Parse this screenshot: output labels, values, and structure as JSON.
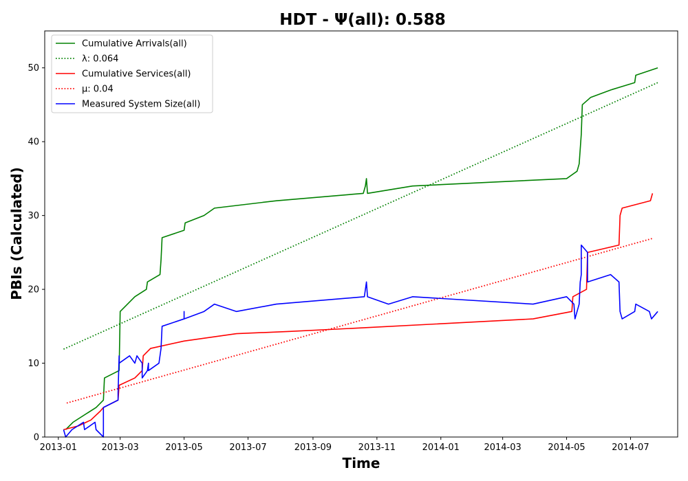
{
  "chart_data": {
    "type": "line",
    "title": "HDT -  Ψ(all): 0.588",
    "xlabel": "Time",
    "ylabel": "PBIs (Calculated)",
    "xlim": [
      "2012-12-19",
      "2014-08-15"
    ],
    "ylim": [
      0,
      55
    ],
    "x_ticks": [
      "2013-01-01",
      "2013-03-01",
      "2013-05-01",
      "2013-07-01",
      "2013-09-01",
      "2013-11-01",
      "2014-01-01",
      "2014-03-01",
      "2014-05-01",
      "2014-07-01"
    ],
    "x_tick_labels": [
      "2013-01",
      "2013-03",
      "2013-05",
      "2013-07",
      "2013-09",
      "2013-11",
      "2014-01",
      "2014-03",
      "2014-05",
      "2014-07"
    ],
    "y_ticks": [
      0,
      10,
      20,
      30,
      40,
      50
    ],
    "y_tick_labels": [
      "0",
      "10",
      "20",
      "30",
      "40",
      "50"
    ],
    "grid": false,
    "legend_position": "upper-left",
    "series": [
      {
        "name": "Cumulative Arrivals(all)",
        "color": "#008000",
        "style": "solid",
        "points": [
          [
            "2013-01-08",
            1
          ],
          [
            "2013-01-15",
            2
          ],
          [
            "2013-02-06",
            4
          ],
          [
            "2013-02-13",
            5
          ],
          [
            "2013-02-14",
            8
          ],
          [
            "2013-02-28",
            9
          ],
          [
            "2013-03-01",
            17
          ],
          [
            "2013-03-08",
            18
          ],
          [
            "2013-03-15",
            19
          ],
          [
            "2013-03-26",
            20
          ],
          [
            "2013-03-27",
            21
          ],
          [
            "2013-04-08",
            22
          ],
          [
            "2013-04-09",
            24
          ],
          [
            "2013-04-10",
            27
          ],
          [
            "2013-05-01",
            28
          ],
          [
            "2013-05-02",
            29
          ],
          [
            "2013-05-20",
            30
          ],
          [
            "2013-05-30",
            31
          ],
          [
            "2013-07-28",
            32
          ],
          [
            "2013-10-19",
            33
          ],
          [
            "2013-10-21",
            34
          ],
          [
            "2013-10-22",
            35
          ],
          [
            "2013-10-23",
            33
          ],
          [
            "2013-12-05",
            34
          ],
          [
            "2014-05-01",
            35
          ],
          [
            "2014-05-11",
            36
          ],
          [
            "2014-05-13",
            37
          ],
          [
            "2014-05-14",
            39
          ],
          [
            "2014-05-15",
            41
          ],
          [
            "2014-05-16",
            45
          ],
          [
            "2014-05-24",
            46
          ],
          [
            "2014-06-12",
            47
          ],
          [
            "2014-07-05",
            48
          ],
          [
            "2014-07-06",
            49
          ],
          [
            "2014-07-27",
            50
          ]
        ]
      },
      {
        "name": "λ: 0.064",
        "color": "#008000",
        "style": "dotted",
        "points": [
          [
            "2013-01-06",
            11.9
          ],
          [
            "2014-07-27",
            48
          ]
        ]
      },
      {
        "name": "Cumulative Services(all)",
        "color": "#ff0000",
        "style": "solid",
        "points": [
          [
            "2013-01-06",
            1
          ],
          [
            "2013-01-20",
            1.5
          ],
          [
            "2013-02-01",
            2.3
          ],
          [
            "2013-02-10",
            3.5
          ],
          [
            "2013-02-13",
            4
          ],
          [
            "2013-02-27",
            5
          ],
          [
            "2013-02-28",
            7
          ],
          [
            "2013-03-15",
            8
          ],
          [
            "2013-03-22",
            9
          ],
          [
            "2013-03-23",
            11
          ],
          [
            "2013-03-30",
            12
          ],
          [
            "2013-05-01",
            13
          ],
          [
            "2013-06-20",
            14
          ],
          [
            "2013-08-10",
            14.3
          ],
          [
            "2013-10-20",
            14.8
          ],
          [
            "2014-03-30",
            16
          ],
          [
            "2014-05-06",
            17
          ],
          [
            "2014-05-07",
            19
          ],
          [
            "2014-05-20",
            20
          ],
          [
            "2014-05-21",
            25
          ],
          [
            "2014-06-20",
            26
          ],
          [
            "2014-06-21",
            30
          ],
          [
            "2014-06-23",
            31
          ],
          [
            "2014-07-20",
            32
          ],
          [
            "2014-07-22",
            33
          ]
        ]
      },
      {
        "name": "μ: 0.04",
        "color": "#ff0000",
        "style": "dotted",
        "points": [
          [
            "2013-01-09",
            4.6
          ],
          [
            "2014-07-22",
            26.9
          ]
        ]
      },
      {
        "name": "Measured System Size(all)",
        "color": "#0000ff",
        "style": "solid",
        "points": [
          [
            "2013-01-06",
            1
          ],
          [
            "2013-01-08",
            0
          ],
          [
            "2013-01-14",
            1
          ],
          [
            "2013-01-25",
            2
          ],
          [
            "2013-01-26",
            1
          ],
          [
            "2013-02-05",
            2
          ],
          [
            "2013-02-06",
            1
          ],
          [
            "2013-02-13",
            0
          ],
          [
            "2013-02-13",
            4
          ],
          [
            "2013-02-27",
            5
          ],
          [
            "2013-02-27",
            6
          ],
          [
            "2013-02-28",
            11
          ],
          [
            "2013-02-28",
            10
          ],
          [
            "2013-03-10",
            11
          ],
          [
            "2013-03-15",
            10
          ],
          [
            "2013-03-17",
            11
          ],
          [
            "2013-03-22",
            10
          ],
          [
            "2013-03-22",
            8
          ],
          [
            "2013-03-27",
            9
          ],
          [
            "2013-03-28",
            10
          ],
          [
            "2013-03-28",
            9
          ],
          [
            "2013-04-07",
            10
          ],
          [
            "2013-04-09",
            12
          ],
          [
            "2013-04-10",
            15
          ],
          [
            "2013-05-01",
            16
          ],
          [
            "2013-05-01",
            17
          ],
          [
            "2013-05-01",
            16
          ],
          [
            "2013-05-20",
            17
          ],
          [
            "2013-05-30",
            18
          ],
          [
            "2013-06-20",
            17
          ],
          [
            "2013-07-28",
            18
          ],
          [
            "2013-10-20",
            19
          ],
          [
            "2013-10-22",
            21
          ],
          [
            "2013-10-23",
            19
          ],
          [
            "2013-11-12",
            18
          ],
          [
            "2013-12-05",
            19
          ],
          [
            "2014-03-30",
            18
          ],
          [
            "2014-05-01",
            19
          ],
          [
            "2014-05-08",
            18
          ],
          [
            "2014-05-09",
            16
          ],
          [
            "2014-05-11",
            17
          ],
          [
            "2014-05-13",
            18
          ],
          [
            "2014-05-14",
            21
          ],
          [
            "2014-05-15",
            22
          ],
          [
            "2014-05-15",
            26
          ],
          [
            "2014-05-21",
            25
          ],
          [
            "2014-05-21",
            21
          ],
          [
            "2014-06-12",
            22
          ],
          [
            "2014-06-20",
            21
          ],
          [
            "2014-06-21",
            17
          ],
          [
            "2014-06-23",
            16
          ],
          [
            "2014-07-05",
            17
          ],
          [
            "2014-07-06",
            18
          ],
          [
            "2014-07-19",
            17
          ],
          [
            "2014-07-21",
            16
          ],
          [
            "2014-07-27",
            17
          ]
        ]
      }
    ]
  }
}
